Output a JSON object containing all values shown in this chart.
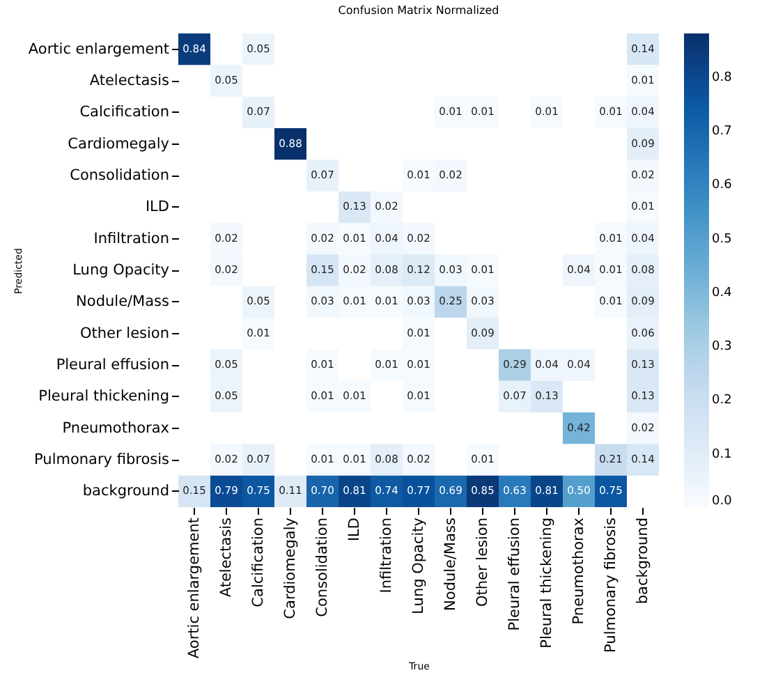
{
  "chart_data": {
    "type": "heatmap",
    "title": "Confusion Matrix Normalized",
    "xlabel": "True",
    "ylabel": "Predicted",
    "categories": [
      "Aortic enlargement",
      "Atelectasis",
      "Calcification",
      "Cardiomegaly",
      "Consolidation",
      "ILD",
      "Infiltration",
      "Lung Opacity",
      "Nodule/Mass",
      "Other lesion",
      "Pleural effusion",
      "Pleural thickening",
      "Pneumothorax",
      "Pulmonary fibrosis",
      "background"
    ],
    "y_categories": [
      "Aortic enlargement",
      "Atelectasis",
      "Calcification",
      "Cardiomegaly",
      "Consolidation",
      "ILD",
      "Infiltration",
      "Lung Opacity",
      "Nodule/Mass",
      "Other lesion",
      "Pleural effusion",
      "Pleural thickening",
      "Pneumothorax",
      "Pulmonary fibrosis",
      "background"
    ],
    "cells": [
      [
        0.84,
        null,
        0.05,
        null,
        null,
        null,
        null,
        null,
        null,
        null,
        null,
        null,
        null,
        null,
        0.14
      ],
      [
        null,
        0.05,
        null,
        null,
        null,
        null,
        null,
        null,
        null,
        null,
        null,
        null,
        null,
        null,
        0.01
      ],
      [
        null,
        null,
        0.07,
        null,
        null,
        null,
        null,
        null,
        0.01,
        0.01,
        null,
        0.01,
        null,
        0.01,
        0.04
      ],
      [
        null,
        null,
        null,
        0.88,
        null,
        null,
        null,
        null,
        null,
        null,
        null,
        null,
        null,
        null,
        0.09
      ],
      [
        null,
        null,
        null,
        null,
        0.07,
        null,
        null,
        0.01,
        0.02,
        null,
        null,
        null,
        null,
        null,
        0.02
      ],
      [
        null,
        null,
        null,
        null,
        null,
        0.13,
        0.02,
        null,
        null,
        null,
        null,
        null,
        null,
        null,
        0.01
      ],
      [
        null,
        0.02,
        null,
        null,
        0.02,
        0.01,
        0.04,
        0.02,
        null,
        null,
        null,
        null,
        null,
        0.01,
        0.04
      ],
      [
        null,
        0.02,
        null,
        null,
        0.15,
        0.02,
        0.08,
        0.12,
        0.03,
        0.01,
        null,
        null,
        0.04,
        0.01,
        0.08
      ],
      [
        null,
        null,
        0.05,
        null,
        0.03,
        0.01,
        0.01,
        0.03,
        0.25,
        0.03,
        null,
        null,
        null,
        0.01,
        0.09
      ],
      [
        null,
        null,
        0.01,
        null,
        null,
        null,
        null,
        0.01,
        null,
        0.09,
        null,
        null,
        null,
        null,
        0.06
      ],
      [
        null,
        0.05,
        null,
        null,
        0.01,
        null,
        0.01,
        0.01,
        null,
        null,
        0.29,
        0.04,
        0.04,
        null,
        0.13
      ],
      [
        null,
        0.05,
        null,
        null,
        0.01,
        0.01,
        null,
        0.01,
        null,
        null,
        0.07,
        0.13,
        null,
        null,
        0.13
      ],
      [
        null,
        null,
        null,
        null,
        null,
        null,
        null,
        null,
        null,
        null,
        null,
        null,
        0.42,
        null,
        0.02
      ],
      [
        null,
        0.02,
        0.07,
        null,
        0.01,
        0.01,
        0.08,
        0.02,
        null,
        0.01,
        null,
        null,
        null,
        0.21,
        0.14
      ],
      [
        0.15,
        0.79,
        0.75,
        0.11,
        0.7,
        0.81,
        0.74,
        0.77,
        0.69,
        0.85,
        0.63,
        0.81,
        0.5,
        0.75,
        null
      ]
    ],
    "cell_labels": [
      [
        "0.84",
        null,
        "0.05",
        null,
        null,
        null,
        null,
        null,
        null,
        null,
        null,
        null,
        null,
        null,
        "0.14"
      ],
      [
        null,
        "0.05",
        null,
        null,
        null,
        null,
        null,
        null,
        null,
        null,
        null,
        null,
        null,
        null,
        "0.01"
      ],
      [
        null,
        null,
        "0.07",
        null,
        null,
        null,
        null,
        null,
        "0.01",
        "0.01",
        null,
        "0.01",
        null,
        "0.01",
        "0.04"
      ],
      [
        null,
        null,
        null,
        "0.88",
        null,
        null,
        null,
        null,
        null,
        null,
        null,
        null,
        null,
        null,
        "0.09"
      ],
      [
        null,
        null,
        null,
        null,
        "0.07",
        null,
        null,
        "0.01",
        "0.02",
        null,
        null,
        null,
        null,
        null,
        "0.02"
      ],
      [
        null,
        null,
        null,
        null,
        null,
        "0.13",
        "0.02",
        null,
        null,
        null,
        null,
        null,
        null,
        null,
        "0.01"
      ],
      [
        null,
        "0.02",
        null,
        null,
        "0.02",
        "0.01",
        "0.04",
        "0.02",
        null,
        null,
        null,
        null,
        null,
        "0.01",
        "0.04"
      ],
      [
        null,
        "0.02",
        null,
        null,
        "0.15",
        "0.02",
        "0.08",
        "0.12",
        "0.03",
        "0.01",
        null,
        null,
        "0.04",
        "0.01",
        "0.08"
      ],
      [
        null,
        null,
        "0.05",
        null,
        "0.03",
        "0.01",
        "0.01",
        "0.03",
        "0.25",
        "0.03",
        null,
        null,
        null,
        "0.01",
        "0.09"
      ],
      [
        null,
        null,
        "0.01",
        null,
        null,
        null,
        null,
        "0.01",
        null,
        "0.09",
        null,
        null,
        null,
        null,
        "0.06"
      ],
      [
        null,
        "0.05",
        null,
        null,
        "0.01",
        null,
        "0.01",
        "0.01",
        null,
        null,
        "0.29",
        "0.04",
        "0.04",
        null,
        "0.13"
      ],
      [
        null,
        "0.05",
        null,
        null,
        "0.01",
        "0.01",
        null,
        "0.01",
        null,
        null,
        "0.07",
        "0.13",
        null,
        null,
        "0.13"
      ],
      [
        null,
        null,
        null,
        null,
        null,
        null,
        null,
        null,
        null,
        null,
        null,
        null,
        "0.42",
        null,
        "0.02"
      ],
      [
        null,
        "0.02",
        "0.07",
        null,
        "0.01",
        "0.01",
        "0.08",
        "0.02",
        null,
        "0.01",
        null,
        null,
        null,
        "0.21",
        "0.14"
      ],
      [
        "0.15",
        "0.79",
        "0.75",
        "0.11",
        "0.70",
        "0.81",
        "0.74",
        "0.77",
        "0.69",
        "0.85",
        "0.63",
        "0.81",
        "0.50",
        "0.75",
        null
      ]
    ],
    "data_labels": true,
    "clim": [
      0,
      0.88
    ],
    "cticks": [
      {
        "value": 0,
        "label": "0.0"
      },
      0.1,
      0.2,
      0.3,
      0.4,
      0.5,
      0.6,
      0.7,
      0.8
    ]
  }
}
